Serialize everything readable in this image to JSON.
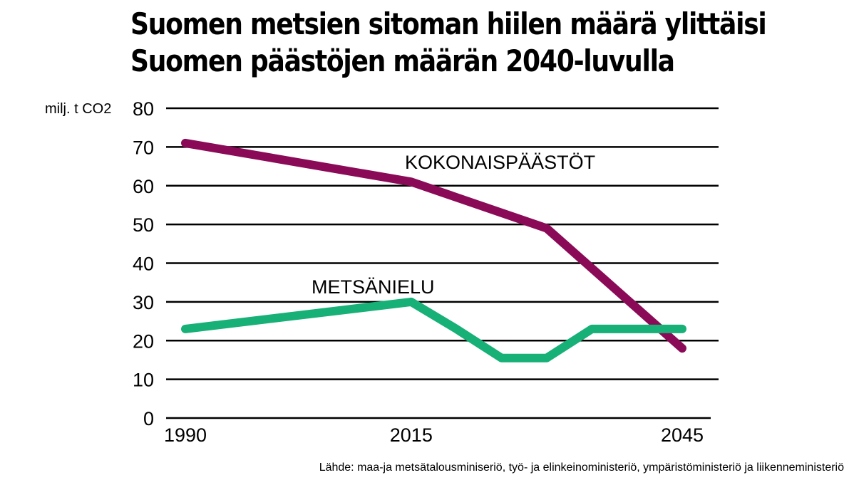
{
  "title": {
    "line1": "Suomen metsien sitoman hiilen määrä ylittäisi",
    "line2": "Suomen päästöjen määrän 2040-luvulla"
  },
  "source": "Lähde: maa-ja metsätalousminiseriö, työ- ja elinkeinoministeriö, ympäristöministeriö ja liikenneministeriö",
  "colors": {
    "kokonaispaastot": "#8b0a57",
    "metsanielu": "#17b077",
    "grid": "#000000"
  },
  "chart_data": {
    "type": "line",
    "ylabel": "milj. t CO2",
    "ylim": [
      0,
      80
    ],
    "yticks": [
      0,
      10,
      20,
      30,
      40,
      50,
      60,
      70,
      80
    ],
    "xlim": [
      1989,
      2046
    ],
    "xticks": [
      "1990",
      "2015",
      "2045"
    ],
    "grid": true,
    "series": [
      {
        "name": "KOKONAISPÄÄSTÖT",
        "key": "kokonaispaastot",
        "x": [
          1990,
          2015,
          2030,
          2045
        ],
        "y": [
          71,
          61,
          49,
          18
        ]
      },
      {
        "name": "METSÄNIELU",
        "key": "metsanielu",
        "x": [
          1990,
          2015,
          2020,
          2025,
          2030,
          2035,
          2045
        ],
        "y": [
          23,
          30,
          23,
          15.5,
          15.5,
          23,
          23
        ]
      }
    ]
  }
}
